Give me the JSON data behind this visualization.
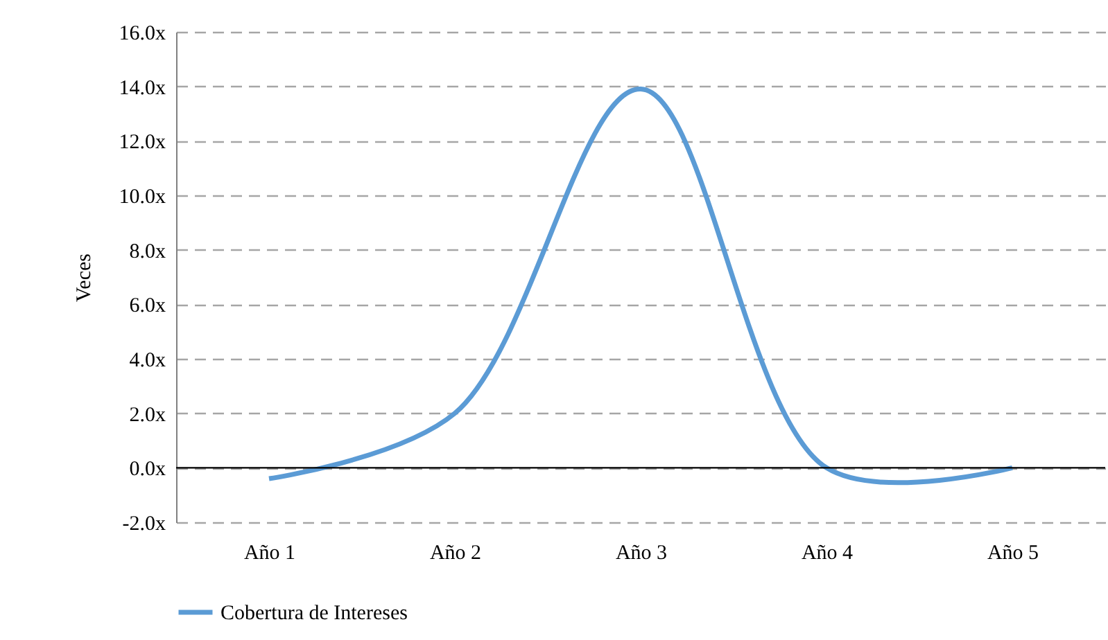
{
  "chart_data": {
    "type": "line",
    "ylabel": "Veces",
    "categories": [
      "Año 1",
      "Año 2",
      "Año 3",
      "Año 4",
      "Año 5"
    ],
    "series": [
      {
        "name": "Cobertura de Intereses",
        "color": "#5b9bd5",
        "values": [
          -0.4,
          2.0,
          13.9,
          0.0,
          0.0
        ]
      }
    ],
    "ylim": [
      -2,
      16
    ],
    "yticks": [
      {
        "value": -2,
        "label": "-2.0x"
      },
      {
        "value": 0,
        "label": "0.0x"
      },
      {
        "value": 2,
        "label": "2.0x"
      },
      {
        "value": 4,
        "label": "4.0x"
      },
      {
        "value": 6,
        "label": "6.0x"
      },
      {
        "value": 8,
        "label": "8.0x"
      },
      {
        "value": 10,
        "label": "10.0x"
      },
      {
        "value": 12,
        "label": "12.0x"
      },
      {
        "value": 14,
        "label": "14.0x"
      },
      {
        "value": 16,
        "label": "16.0x"
      }
    ],
    "grid": "y",
    "legend": "bottom",
    "line_style": "solid",
    "marker": "none"
  }
}
